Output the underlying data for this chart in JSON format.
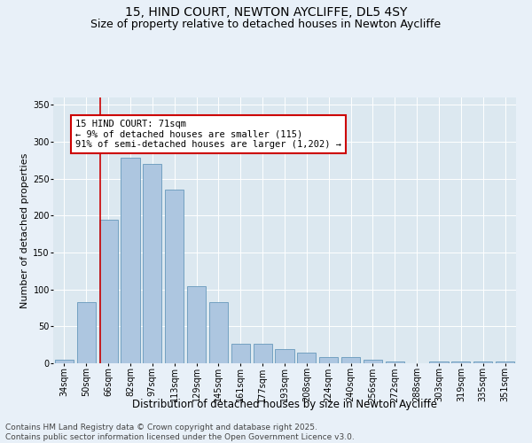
{
  "title1": "15, HIND COURT, NEWTON AYCLIFFE, DL5 4SY",
  "title2": "Size of property relative to detached houses in Newton Aycliffe",
  "xlabel": "Distribution of detached houses by size in Newton Aycliffe",
  "ylabel": "Number of detached properties",
  "categories": [
    "34sqm",
    "50sqm",
    "66sqm",
    "82sqm",
    "97sqm",
    "113sqm",
    "129sqm",
    "145sqm",
    "161sqm",
    "177sqm",
    "193sqm",
    "208sqm",
    "224sqm",
    "240sqm",
    "256sqm",
    "272sqm",
    "288sqm",
    "303sqm",
    "319sqm",
    "335sqm",
    "351sqm"
  ],
  "values": [
    5,
    83,
    195,
    278,
    270,
    235,
    105,
    83,
    27,
    27,
    19,
    14,
    8,
    8,
    5,
    2,
    0,
    3,
    2,
    2,
    2
  ],
  "bar_color": "#adc6e0",
  "bar_edge_color": "#6699bb",
  "annotation_text": "15 HIND COURT: 71sqm\n← 9% of detached houses are smaller (115)\n91% of semi-detached houses are larger (1,202) →",
  "annotation_box_color": "#ffffff",
  "annotation_box_edge_color": "#cc0000",
  "vline_x_index": 1.62,
  "vline_color": "#cc0000",
  "ylim": [
    0,
    360
  ],
  "yticks": [
    0,
    50,
    100,
    150,
    200,
    250,
    300,
    350
  ],
  "plot_bg_color": "#dce8f0",
  "fig_bg_color": "#e8f0f8",
  "footer": "Contains HM Land Registry data © Crown copyright and database right 2025.\nContains public sector information licensed under the Open Government Licence v3.0.",
  "title1_fontsize": 10,
  "title2_fontsize": 9,
  "xlabel_fontsize": 8.5,
  "ylabel_fontsize": 8,
  "tick_fontsize": 7,
  "annotation_fontsize": 7.5,
  "footer_fontsize": 6.5
}
